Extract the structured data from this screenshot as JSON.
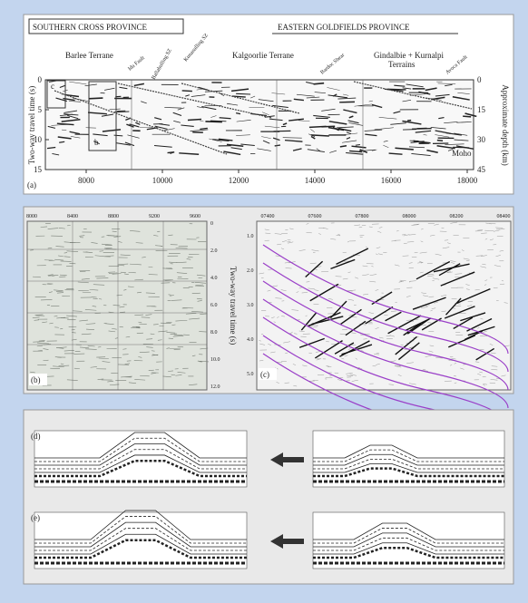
{
  "panel_a": {
    "label": "(a)",
    "province_left": "SOUTHERN CROSS PROVINCE",
    "province_right": "EASTERN GOLDFIELDS PROVINCE",
    "terranes": [
      "Barlee Terrane",
      "Kalgoorlie Terrane",
      "Gindalbie + Kurnalpi",
      "Terrains"
    ],
    "faults": [
      "Ida Fault",
      "Ballabulling SZ",
      "Kunanalling SZ",
      "Bardoc Shear",
      "Avoca Fault"
    ],
    "y_axis_label": "Two-way travel time (s)",
    "y2_axis_label": "Approximate depth (km)",
    "yticks": [
      "0",
      "5",
      "10",
      "15"
    ],
    "y2ticks": [
      "0",
      "15",
      "30",
      "45"
    ],
    "xticks": [
      "8000",
      "10000",
      "12000",
      "14000",
      "16000",
      "18000"
    ],
    "moho": "Moho",
    "box_b": "b",
    "box_c": "c"
  },
  "panel_b": {
    "label": "(b)",
    "xticks": [
      "8000",
      "8400",
      "8800",
      "9200",
      "9600"
    ],
    "yticks": [
      "0",
      "2.0",
      "4.0",
      "6.0",
      "8.0",
      "10.0",
      "12.0"
    ],
    "y_axis_label": "Two-way travel time (s)"
  },
  "panel_c": {
    "label": "(c)",
    "xticks": [
      "07400",
      "07600",
      "07800",
      "08000",
      "08200",
      "08400"
    ],
    "yticks": [
      "1.0",
      "2.0",
      "3.0",
      "4.0",
      "5.0"
    ]
  },
  "panel_d": {
    "label": "(d)"
  },
  "panel_e": {
    "label": "(e)"
  }
}
